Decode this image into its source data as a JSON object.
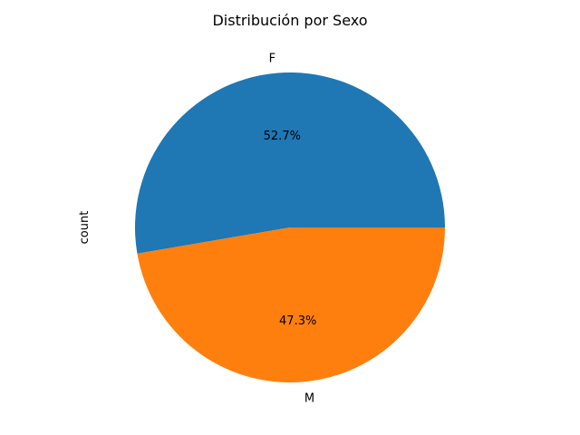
{
  "chart_data": {
    "type": "pie",
    "title": "Distribución por Sexo",
    "ylabel": "count",
    "slices": [
      {
        "label": "F",
        "value": 52.7,
        "pct_label": "52.7%",
        "color": "#1f77b4"
      },
      {
        "label": "M",
        "value": 47.3,
        "pct_label": "47.3%",
        "color": "#ff7f0e"
      }
    ]
  }
}
